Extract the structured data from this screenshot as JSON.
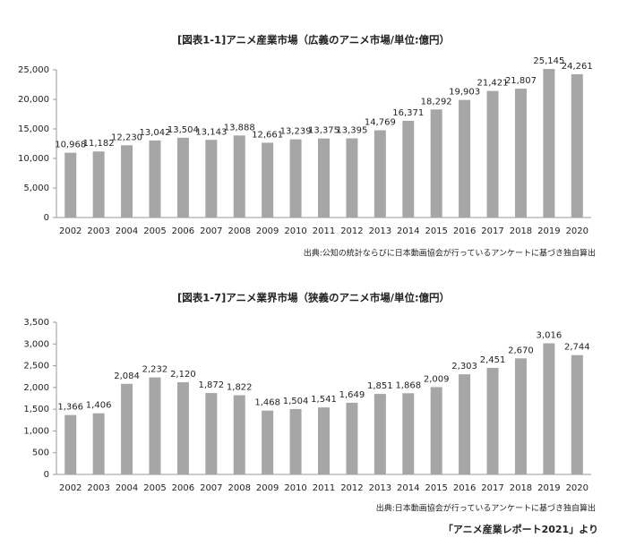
{
  "chart_data": [
    {
      "type": "bar",
      "title": "[図表1-1]アニメ産業市場（広義のアニメ市場/単位:億円）",
      "source": "出典:公知の統計ならびに日本動画協会が行っているアンケートに基づき独自算出",
      "categories": [
        "2002",
        "2003",
        "2004",
        "2005",
        "2006",
        "2007",
        "2008",
        "2009",
        "2010",
        "2011",
        "2012",
        "2013",
        "2014",
        "2015",
        "2016",
        "2017",
        "2018",
        "2019",
        "2020"
      ],
      "values": [
        10968,
        11182,
        12230,
        13042,
        13504,
        13143,
        13888,
        12661,
        13239,
        13375,
        13395,
        14769,
        16371,
        18292,
        19903,
        21421,
        21807,
        25145,
        24261
      ],
      "value_labels": [
        "10,968",
        "11,182",
        "12,230",
        "13,042",
        "13,504",
        "13,143",
        "13,888",
        "12,661",
        "13,239",
        "13,375",
        "13,395",
        "14,769",
        "16,371",
        "18,292",
        "19,903",
        "21,421",
        "21,807",
        "25,145",
        "24,261"
      ],
      "color": "#a6a6a6",
      "ylim": [
        0,
        25000
      ],
      "yticks": [
        0,
        {
          "value": 5000,
          "label": "5,000"
        },
        {
          "value": 10000,
          "label": "10,000"
        },
        {
          "value": 15000,
          "label": "15,000"
        },
        {
          "value": 20000,
          "label": "20,000"
        },
        {
          "value": 25000,
          "label": "25,000"
        }
      ]
    },
    {
      "type": "bar",
      "title": "[図表1-7]アニメ業界市場（狭義のアニメ市場/単位:億円）",
      "source": "出典:日本動画協会が行っているアンケートに基づき独自算出",
      "categories": [
        "2002",
        "2003",
        "2004",
        "2005",
        "2006",
        "2007",
        "2008",
        "2009",
        "2010",
        "2011",
        "2012",
        "2013",
        "2014",
        "2015",
        "2016",
        "2017",
        "2018",
        "2019",
        "2020"
      ],
      "values": [
        1366,
        1406,
        2084,
        2232,
        2120,
        1872,
        1822,
        1468,
        1504,
        1541,
        1649,
        1851,
        1868,
        2009,
        2303,
        2451,
        2670,
        3016,
        2744
      ],
      "value_labels": [
        "1,366",
        "1,406",
        "2,084",
        "2,232",
        "2,120",
        "1,872",
        "1,822",
        "1,468",
        "1,504",
        "1,541",
        "1,649",
        "1,851",
        "1,868",
        "2,009",
        "2,303",
        "2,451",
        "2,670",
        "3,016",
        "2,744"
      ],
      "color": "#a6a6a6",
      "ylim": [
        0,
        3500
      ],
      "yticks": [
        0,
        {
          "value": 500,
          "label": "500"
        },
        {
          "value": 1000,
          "label": "1,000"
        },
        {
          "value": 1500,
          "label": "1,500"
        },
        {
          "value": 2000,
          "label": "2,000"
        },
        {
          "value": 2500,
          "label": "2,500"
        },
        {
          "value": 3000,
          "label": "3,000"
        },
        {
          "value": 3500,
          "label": "3,500"
        }
      ]
    }
  ],
  "footer": "「アニメ産業レポート2021」より"
}
